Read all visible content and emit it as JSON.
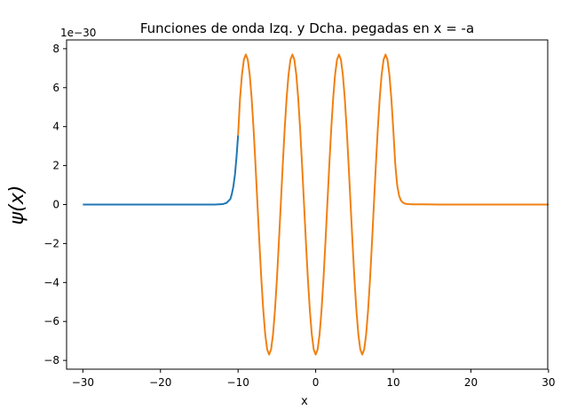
{
  "chart_data": {
    "type": "line",
    "title": "Funciones de onda Izq. y Dcha. pegadas en x = -a",
    "xlabel": "x",
    "ylabel": "ψ(x)",
    "y_offset_text": "1e−30",
    "y_scale": 1e-30,
    "xlim": [
      -32.1,
      29.9
    ],
    "ylim": [
      -8.45,
      8.45
    ],
    "xticks": [
      -30,
      -20,
      -10,
      0,
      10,
      20,
      30
    ],
    "xtick_labels": [
      "−30",
      "−20",
      "−10",
      "0",
      "10",
      "20",
      "30"
    ],
    "yticks": [
      -8,
      -6,
      -4,
      -2,
      0,
      2,
      4,
      6,
      8
    ],
    "ytick_labels": [
      "−8",
      "−6",
      "−4",
      "−2",
      "0",
      "2",
      "4",
      "6",
      "8"
    ],
    "grid": false,
    "series": [
      {
        "color": "#1f77b4",
        "x": [
          -30,
          -25,
          -20,
          -16,
          -14,
          -13,
          -12,
          -11.5,
          -11,
          -10.8,
          -10.6,
          -10.4,
          -10.2,
          -10
        ],
        "y": [
          0,
          0,
          0,
          0,
          0,
          0,
          0.02,
          0.08,
          0.28,
          0.55,
          0.95,
          1.55,
          2.45,
          3.55
        ]
      },
      {
        "color": "#f08012",
        "x": [
          -10,
          -9.75,
          -9.5,
          -9.25,
          -9,
          -8.75,
          -8.5,
          -8.25,
          -8,
          -7.75,
          -7.5,
          -7.25,
          -7,
          -6.75,
          -6.5,
          -6.25,
          -6,
          -5.75,
          -5.5,
          -5.25,
          -5,
          -4.75,
          -4.5,
          -4.25,
          -4,
          -3.75,
          -3.5,
          -3.25,
          -3,
          -2.75,
          -2.5,
          -2.25,
          -2,
          -1.75,
          -1.5,
          -1.25,
          -1,
          -0.75,
          -0.5,
          -0.25,
          0,
          0.25,
          0.5,
          0.75,
          1,
          1.25,
          1.5,
          1.75,
          2,
          2.25,
          2.5,
          2.75,
          3,
          3.25,
          3.5,
          3.75,
          4,
          4.25,
          4.5,
          4.75,
          5,
          5.25,
          5.5,
          5.75,
          6,
          6.25,
          6.5,
          6.75,
          7,
          7.25,
          7.5,
          7.75,
          8,
          8.25,
          8.5,
          8.75,
          9,
          9.25,
          9.5,
          9.75,
          10,
          10.25,
          10.5,
          10.75,
          11,
          11.25,
          11.5,
          11.75,
          12,
          12.5,
          13,
          14,
          16,
          20,
          25,
          30
        ],
        "y": [
          3.55,
          5.44,
          6.67,
          7.44,
          7.7,
          7.44,
          6.67,
          5.44,
          3.85,
          1.99,
          0,
          -1.99,
          -3.85,
          -5.44,
          -6.67,
          -7.44,
          -7.7,
          -7.44,
          -6.67,
          -5.44,
          -3.85,
          -1.99,
          0,
          1.99,
          3.85,
          5.44,
          6.67,
          7.44,
          7.7,
          7.44,
          6.67,
          5.44,
          3.85,
          1.99,
          0,
          -1.99,
          -3.85,
          -5.44,
          -6.67,
          -7.44,
          -7.7,
          -7.44,
          -6.67,
          -5.44,
          -3.85,
          -1.99,
          0,
          1.99,
          3.85,
          5.44,
          6.67,
          7.44,
          7.7,
          7.44,
          6.67,
          5.44,
          3.85,
          1.99,
          0,
          -1.99,
          -3.85,
          -5.44,
          -6.67,
          -7.44,
          -7.7,
          -7.44,
          -6.67,
          -5.44,
          -3.85,
          -1.99,
          0,
          1.99,
          3.85,
          5.44,
          6.67,
          7.44,
          7.7,
          7.44,
          6.67,
          5.44,
          3.85,
          2.1,
          1.0,
          0.45,
          0.2,
          0.1,
          0.05,
          0.03,
          0.02,
          0.01,
          0.01,
          0.01,
          0,
          0,
          0,
          0
        ]
      }
    ]
  }
}
